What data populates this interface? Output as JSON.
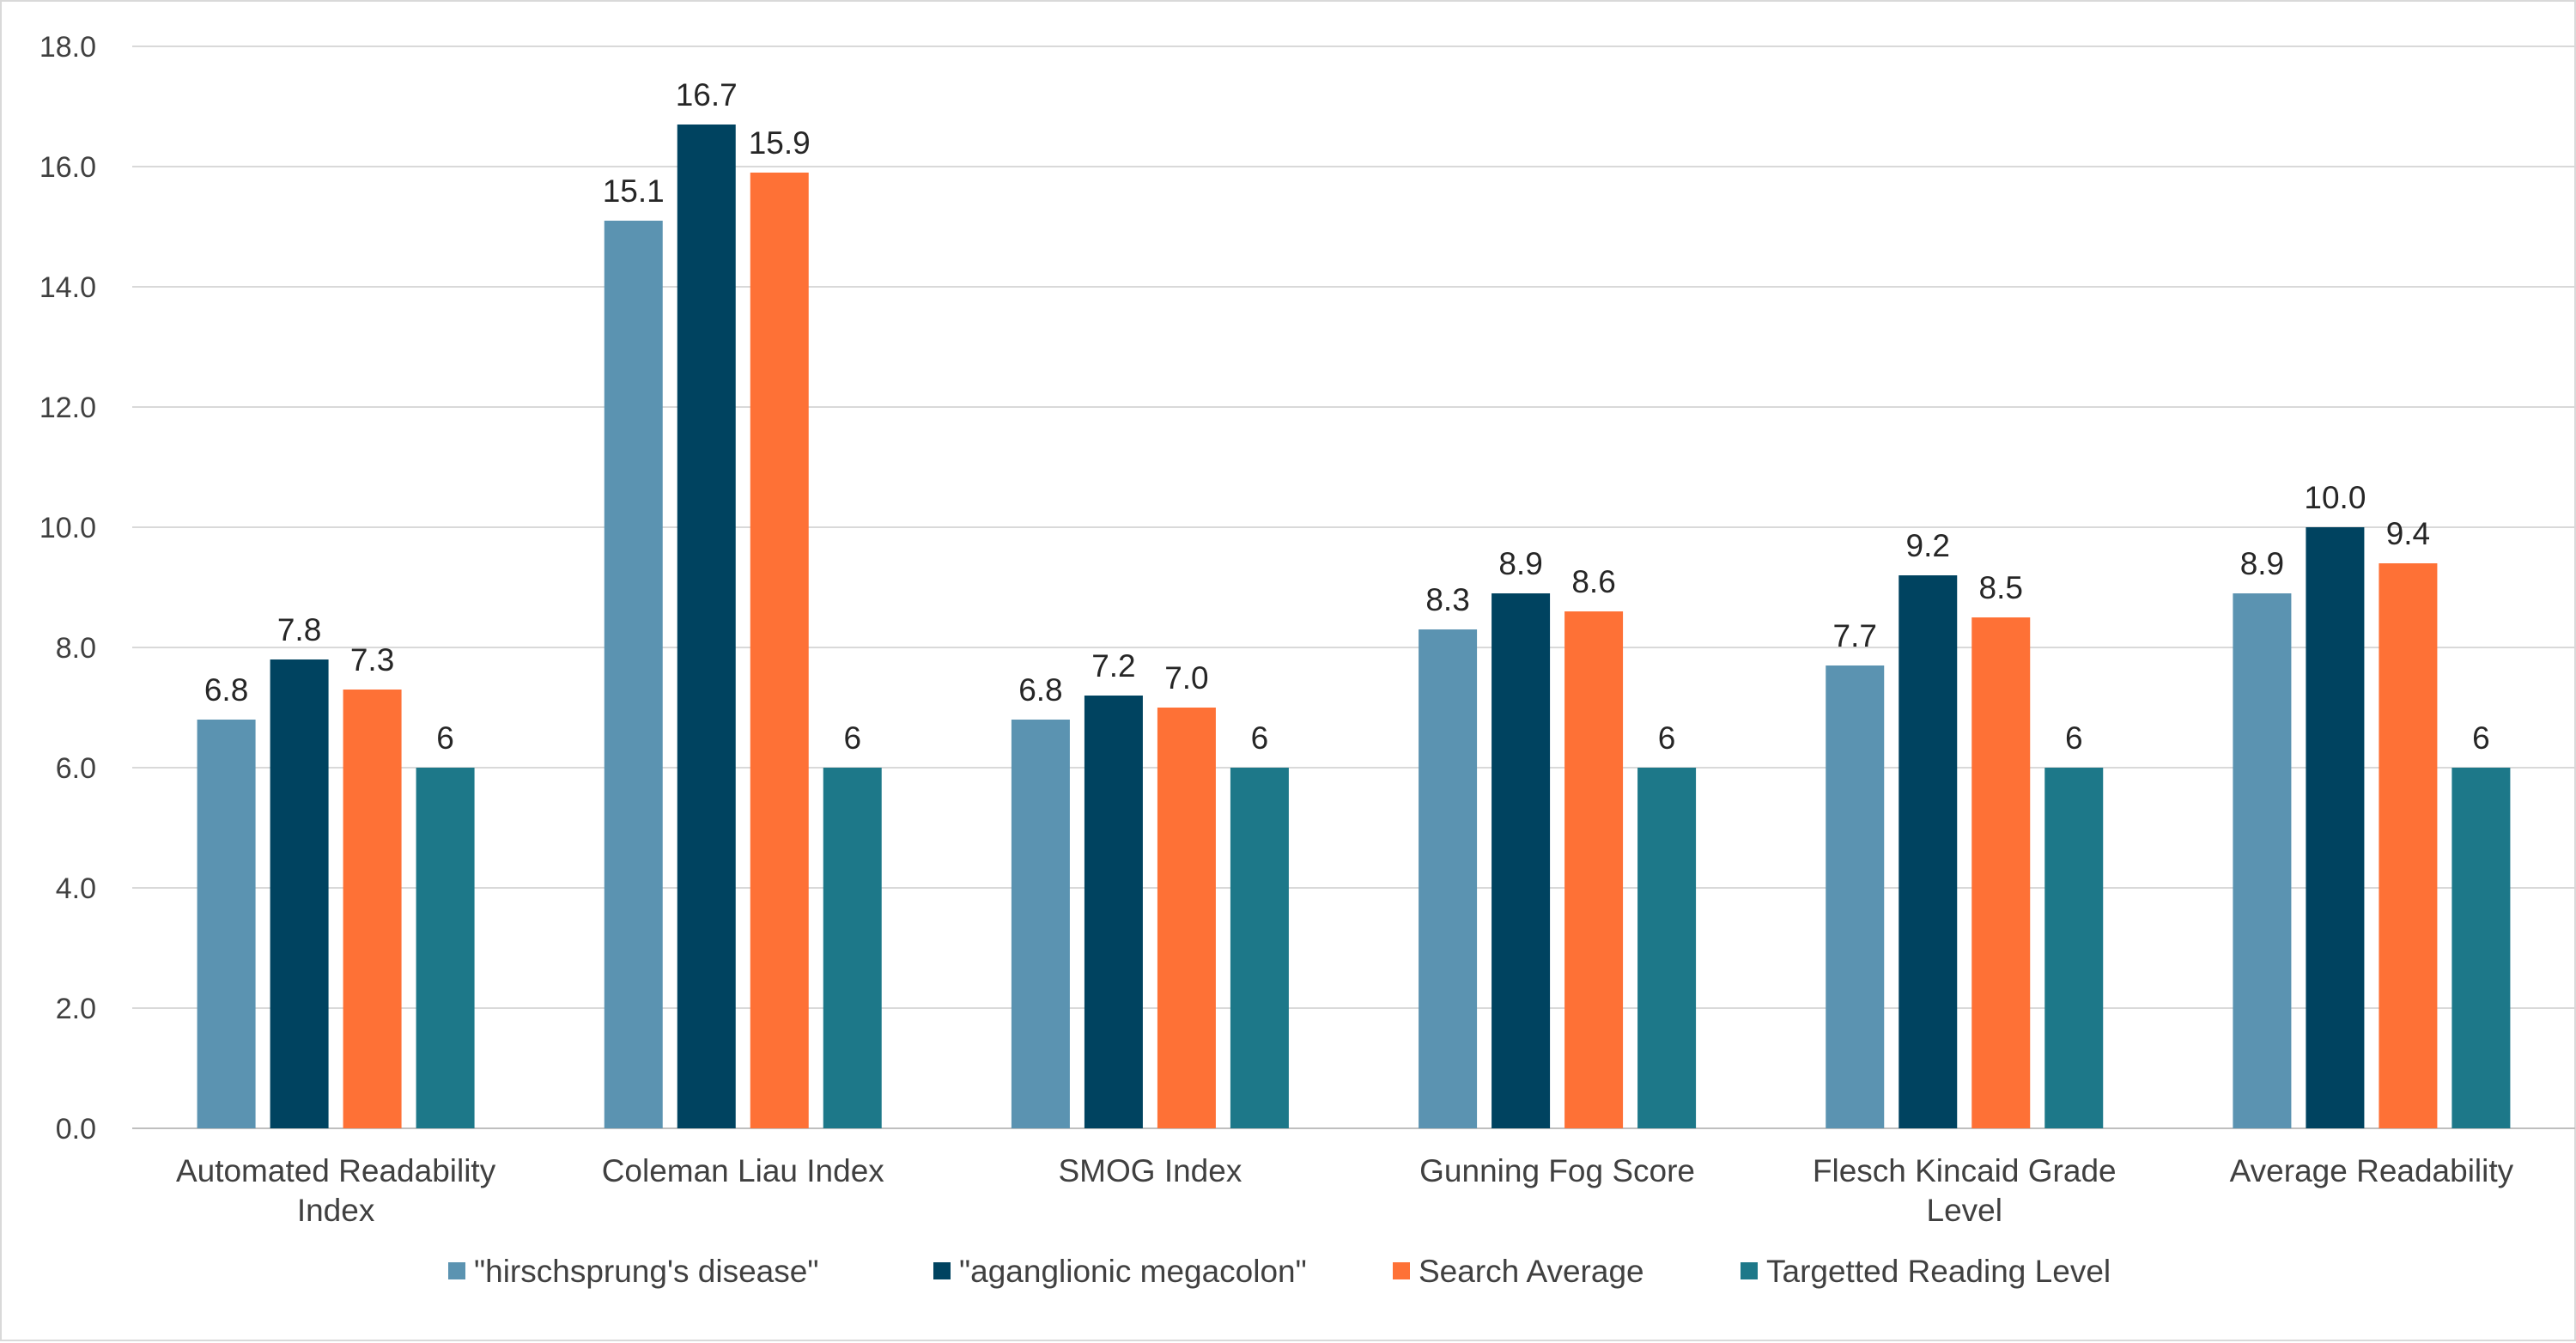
{
  "chart_data": {
    "type": "bar",
    "title": "",
    "xlabel": "",
    "ylabel": "",
    "ylim": [
      0,
      18
    ],
    "yticks": [
      "0.0",
      "2.0",
      "4.0",
      "6.0",
      "8.0",
      "10.0",
      "12.0",
      "14.0",
      "16.0",
      "18.0"
    ],
    "grid": true,
    "legend_position": "bottom",
    "categories": [
      [
        "Automated Readability",
        "Index"
      ],
      [
        "Coleman Liau Index"
      ],
      [
        "SMOG Index"
      ],
      [
        "Gunning Fog Score"
      ],
      [
        "Flesch Kincaid Grade",
        "Level"
      ],
      [
        "Average Readability"
      ]
    ],
    "series": [
      {
        "name": "\"hirschsprung's disease\"",
        "color": "#5b93b1",
        "values": [
          6.8,
          15.1,
          6.8,
          8.3,
          7.7,
          8.9
        ],
        "labels": [
          "6.8",
          "15.1",
          "6.8",
          "8.3",
          "7.7",
          "8.9"
        ]
      },
      {
        "name": "\"aganglionic megacolon\"",
        "color": "#004360",
        "values": [
          7.8,
          16.7,
          7.2,
          8.9,
          9.2,
          10.0
        ],
        "labels": [
          "7.8",
          "16.7",
          "7.2",
          "8.9",
          "9.2",
          "10.0"
        ]
      },
      {
        "name": "Search Average",
        "color": "#fe7136",
        "values": [
          7.3,
          15.9,
          7.0,
          8.6,
          8.5,
          9.4
        ],
        "labels": [
          "7.3",
          "15.9",
          "7.0",
          "8.6",
          "8.5",
          "9.4"
        ]
      },
      {
        "name": "Targetted Reading Level",
        "color": "#1d7889",
        "values": [
          6,
          6,
          6,
          6,
          6,
          6
        ],
        "labels": [
          "6",
          "6",
          "6",
          "6",
          "6",
          "6"
        ]
      }
    ]
  }
}
